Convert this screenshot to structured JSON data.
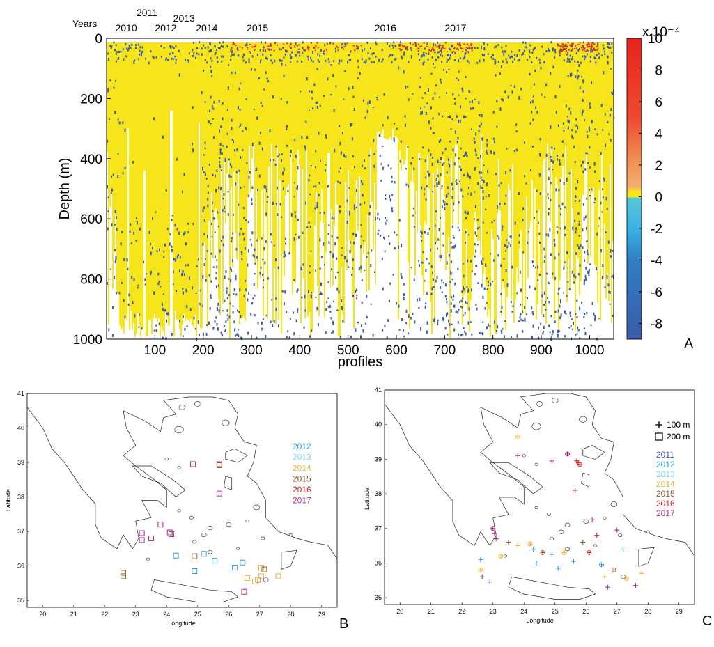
{
  "chart_data": [
    {
      "type": "heatmap",
      "panel_label": "A",
      "xlabel": "profiles",
      "ylabel": "Depth (m)",
      "xlim": [
        0,
        1050
      ],
      "ylim": [
        1000,
        0
      ],
      "x_ticks": [
        "100",
        "200",
        "300",
        "400",
        "500",
        "600",
        "700",
        "800",
        "900",
        "1000"
      ],
      "y_ticks": [
        "0",
        "200",
        "400",
        "600",
        "800",
        "1000"
      ],
      "years_label": "Years",
      "years": [
        {
          "label": "2010",
          "profile": 18,
          "row": 2
        },
        {
          "label": "2011",
          "profile": 62,
          "row": 0
        },
        {
          "label": "2012",
          "profile": 100,
          "row": 2
        },
        {
          "label": "2013",
          "profile": 138,
          "row": 1
        },
        {
          "label": "2014",
          "profile": 185,
          "row": 2
        },
        {
          "label": "2015",
          "profile": 290,
          "row": 2
        },
        {
          "label": "2016",
          "profile": 555,
          "row": 2
        },
        {
          "label": "2017",
          "profile": 700,
          "row": 2
        }
      ],
      "colorbar": {
        "range": [
          -9,
          10
        ],
        "ticks": [
          "10",
          "8",
          "6",
          "4",
          "2",
          "0",
          "-2",
          "-4",
          "-6",
          "-8"
        ],
        "exponent_label": "x 10⁻⁴"
      },
      "colors": {
        "positive_small": "#f5e51a",
        "negative": "#3a5ba8",
        "high_positive": "#e8231c"
      }
    },
    {
      "type": "scatter",
      "panel_label": "B",
      "xlabel": "Longitude",
      "ylabel": "Latitude",
      "xlim": [
        19.5,
        29.5
      ],
      "ylim": [
        34.8,
        41
      ],
      "x_ticks": [
        "20",
        "21",
        "22",
        "23",
        "24",
        "25",
        "26",
        "27",
        "28",
        "29"
      ],
      "y_ticks": [
        "35",
        "36",
        "37",
        "38",
        "39",
        "40",
        "41"
      ],
      "legend": [
        {
          "label": "2012",
          "color": "#2a9fd6"
        },
        {
          "label": "2013",
          "color": "#7fd1f0"
        },
        {
          "label": "2014",
          "color": "#e8b53a"
        },
        {
          "label": "2015",
          "color": "#8a5a2b"
        },
        {
          "label": "2016",
          "color": "#d2232a"
        },
        {
          "label": "2017",
          "color": "#b0308c"
        }
      ],
      "points": [
        {
          "lon": 22.6,
          "lat": 35.8,
          "year": "2015"
        },
        {
          "lon": 22.6,
          "lat": 35.7,
          "year": "2015"
        },
        {
          "lon": 23.2,
          "lat": 36.95,
          "year": "2017"
        },
        {
          "lon": 23.2,
          "lat": 36.75,
          "year": "2017"
        },
        {
          "lon": 23.5,
          "lat": 36.8,
          "year": "2017"
        },
        {
          "lon": 23.8,
          "lat": 37.2,
          "year": "2017"
        },
        {
          "lon": 24.1,
          "lat": 36.97,
          "year": "2017"
        },
        {
          "lon": 24.15,
          "lat": 36.92,
          "year": "2017"
        },
        {
          "lon": 24.3,
          "lat": 36.3,
          "year": "2012"
        },
        {
          "lon": 24.9,
          "lat": 36.28,
          "year": "2015"
        },
        {
          "lon": 24.9,
          "lat": 35.85,
          "year": "2012"
        },
        {
          "lon": 24.85,
          "lat": 38.95,
          "year": "2017"
        },
        {
          "lon": 25.2,
          "lat": 36.35,
          "year": "2012"
        },
        {
          "lon": 25.55,
          "lat": 36.15,
          "year": "2012"
        },
        {
          "lon": 25.7,
          "lat": 38.95,
          "year": "2016"
        },
        {
          "lon": 25.7,
          "lat": 38.92,
          "year": "2015"
        },
        {
          "lon": 25.7,
          "lat": 38.1,
          "year": "2017"
        },
        {
          "lon": 26.2,
          "lat": 35.95,
          "year": "2012"
        },
        {
          "lon": 26.45,
          "lat": 36.1,
          "year": "2012"
        },
        {
          "lon": 26.5,
          "lat": 35.25,
          "year": "2017"
        },
        {
          "lon": 26.6,
          "lat": 35.65,
          "year": "2014"
        },
        {
          "lon": 26.85,
          "lat": 35.55,
          "year": "2014"
        },
        {
          "lon": 26.95,
          "lat": 35.6,
          "year": "2015"
        },
        {
          "lon": 27.05,
          "lat": 35.7,
          "year": "2014"
        },
        {
          "lon": 27.05,
          "lat": 35.95,
          "year": "2014"
        },
        {
          "lon": 27.15,
          "lat": 35.9,
          "year": "2015"
        },
        {
          "lon": 27.6,
          "lat": 35.7,
          "year": "2014"
        }
      ]
    },
    {
      "type": "scatter",
      "panel_label": "C",
      "xlabel": "Longitude",
      "ylabel": "Latitude",
      "xlim": [
        19.5,
        29.5
      ],
      "ylim": [
        34.8,
        41
      ],
      "x_ticks": [
        "20",
        "21",
        "22",
        "23",
        "24",
        "25",
        "26",
        "27",
        "28",
        "29"
      ],
      "y_ticks": [
        "35",
        "36",
        "37",
        "38",
        "39",
        "40",
        "41"
      ],
      "marker_legend": [
        {
          "marker": "plus",
          "label": "100 m"
        },
        {
          "marker": "square",
          "label": "200 m"
        }
      ],
      "legend": [
        {
          "label": "2011",
          "color": "#3b4fb8"
        },
        {
          "label": "2012",
          "color": "#2a9fd6"
        },
        {
          "label": "2013",
          "color": "#7fd1f0"
        },
        {
          "label": "2014",
          "color": "#e8b53a"
        },
        {
          "label": "2015",
          "color": "#8a5a2b"
        },
        {
          "label": "2016",
          "color": "#d2232a"
        },
        {
          "label": "2017",
          "color": "#b0308c"
        }
      ],
      "points": [
        {
          "lon": 23.8,
          "lat": 39.65,
          "year": "2014"
        },
        {
          "lon": 23.8,
          "lat": 39.1,
          "year": "2017"
        },
        {
          "lon": 24.9,
          "lat": 38.95,
          "year": "2017"
        },
        {
          "lon": 25.4,
          "lat": 39.15,
          "year": "2017"
        },
        {
          "lon": 25.7,
          "lat": 38.95,
          "year": "2016"
        },
        {
          "lon": 25.75,
          "lat": 38.9,
          "year": "2016"
        },
        {
          "lon": 25.8,
          "lat": 38.85,
          "year": "2016"
        },
        {
          "lon": 25.65,
          "lat": 38.1,
          "year": "2017"
        },
        {
          "lon": 22.6,
          "lat": 36.1,
          "year": "2012"
        },
        {
          "lon": 22.6,
          "lat": 35.8,
          "year": "2014"
        },
        {
          "lon": 22.65,
          "lat": 35.6,
          "year": "2015"
        },
        {
          "lon": 22.9,
          "lat": 35.45,
          "year": "2017"
        },
        {
          "lon": 23.0,
          "lat": 37.0,
          "year": "2017"
        },
        {
          "lon": 23.05,
          "lat": 36.85,
          "year": "2017"
        },
        {
          "lon": 23.1,
          "lat": 36.7,
          "year": "2017"
        },
        {
          "lon": 23.25,
          "lat": 36.2,
          "year": "2014"
        },
        {
          "lon": 23.5,
          "lat": 36.6,
          "year": "2015"
        },
        {
          "lon": 23.8,
          "lat": 36.5,
          "year": "2014"
        },
        {
          "lon": 24.2,
          "lat": 36.55,
          "year": "2014"
        },
        {
          "lon": 24.3,
          "lat": 36.4,
          "year": "2012"
        },
        {
          "lon": 24.4,
          "lat": 36.0,
          "year": "2012"
        },
        {
          "lon": 24.6,
          "lat": 36.3,
          "year": "2015"
        },
        {
          "lon": 24.9,
          "lat": 36.25,
          "year": "2012"
        },
        {
          "lon": 25.1,
          "lat": 35.85,
          "year": "2012"
        },
        {
          "lon": 25.3,
          "lat": 36.3,
          "year": "2014"
        },
        {
          "lon": 25.6,
          "lat": 36.05,
          "year": "2012"
        },
        {
          "lon": 25.9,
          "lat": 36.6,
          "year": "2015"
        },
        {
          "lon": 26.1,
          "lat": 36.3,
          "year": "2016"
        },
        {
          "lon": 26.2,
          "lat": 37.25,
          "year": "2017"
        },
        {
          "lon": 26.35,
          "lat": 36.8,
          "year": "2016"
        },
        {
          "lon": 26.5,
          "lat": 35.95,
          "year": "2012"
        },
        {
          "lon": 26.6,
          "lat": 35.6,
          "year": "2014"
        },
        {
          "lon": 26.7,
          "lat": 35.3,
          "year": "2017"
        },
        {
          "lon": 26.9,
          "lat": 35.8,
          "year": "2015"
        },
        {
          "lon": 27.0,
          "lat": 36.95,
          "year": "2017"
        },
        {
          "lon": 27.2,
          "lat": 36.4,
          "year": "2012"
        },
        {
          "lon": 27.3,
          "lat": 35.55,
          "year": "2014"
        },
        {
          "lon": 27.6,
          "lat": 35.35,
          "year": "2017"
        },
        {
          "lon": 27.8,
          "lat": 35.7,
          "year": "2014"
        }
      ]
    }
  ]
}
